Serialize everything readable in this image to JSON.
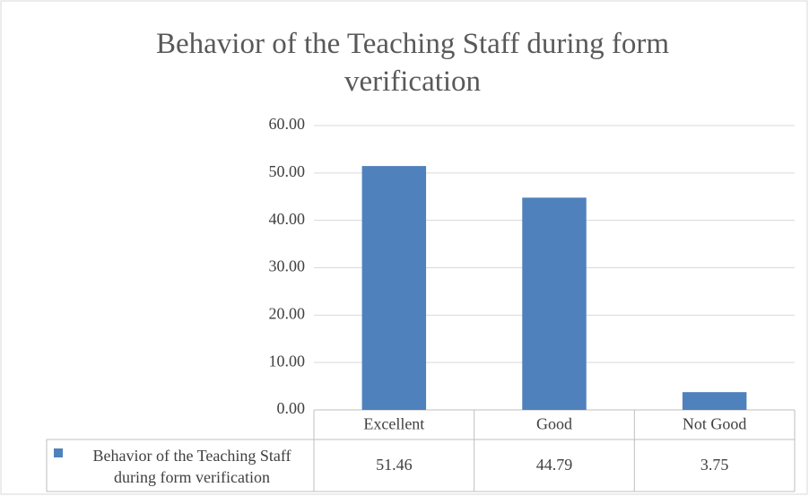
{
  "chart_data": {
    "type": "bar",
    "title": "Behavior of the Teaching Staff during form verification",
    "categories": [
      "Excellent",
      "Good",
      "Not Good"
    ],
    "series": [
      {
        "name": "Behavior of the Teaching Staff during form verification",
        "color": "#4f81bd",
        "values": [
          51.46,
          44.79,
          3.75
        ]
      }
    ],
    "ylim": [
      0,
      60
    ],
    "yticks": [
      {
        "value": 0,
        "label": "0.00"
      },
      {
        "value": 10,
        "label": "10.00"
      },
      {
        "value": 20,
        "label": "20.00"
      },
      {
        "value": 30,
        "label": "30.00"
      },
      {
        "value": 40,
        "label": "40.00"
      },
      {
        "value": 50,
        "label": "50.00"
      },
      {
        "value": 60,
        "label": "60.00"
      }
    ],
    "grid": true,
    "data_table": true
  }
}
